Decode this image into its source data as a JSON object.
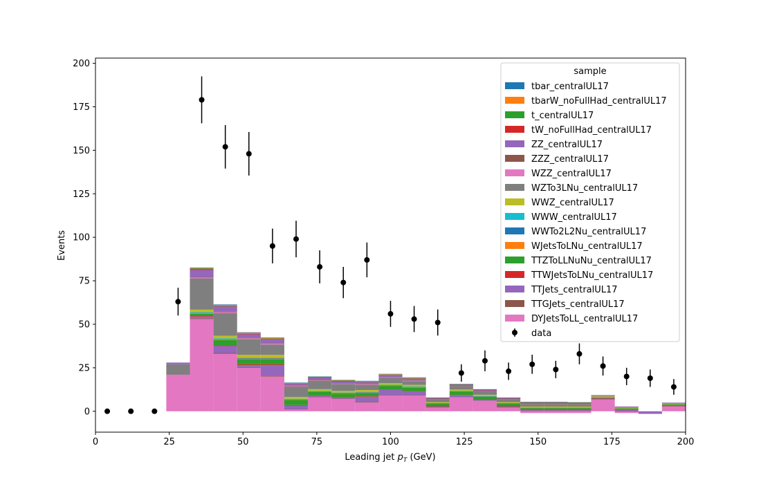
{
  "chart_data": {
    "type": "bar",
    "xlabel": "Leading jet  p_T (GeV)",
    "xlabel_main": "Leading jet  ",
    "xlabel_p": "p",
    "xlabel_sub": "T",
    "xlabel_unit": " (GeV)",
    "ylabel": "Events",
    "xlim": [
      0,
      200
    ],
    "ylim": [
      -12,
      203
    ],
    "xticks": [
      0,
      25,
      50,
      75,
      100,
      125,
      150,
      175,
      200
    ],
    "yticks": [
      0,
      25,
      50,
      75,
      100,
      125,
      150,
      175,
      200
    ],
    "bin_edges": [
      0,
      8,
      16,
      24,
      32,
      40,
      48,
      56,
      64,
      72,
      80,
      88,
      96,
      104,
      112,
      120,
      128,
      136,
      144,
      152,
      160,
      168,
      176,
      184,
      192,
      200
    ],
    "legend": {
      "title": "sample",
      "placement": "upper right"
    },
    "series": [
      {
        "name": "DYJetsToLL_centralUL17",
        "color": "#e377c2",
        "values": [
          0,
          0,
          0,
          21,
          53,
          33,
          25,
          20,
          1,
          8,
          7,
          5,
          9,
          9,
          2,
          8,
          6,
          2,
          -1,
          -1,
          -1,
          7,
          -1,
          0,
          3
        ]
      },
      {
        "name": "TTGJets_centralUL17",
        "color": "#8c564b",
        "values": [
          0,
          0,
          0,
          0,
          0.5,
          0.5,
          0.5,
          0.5,
          0.3,
          0.3,
          0.3,
          0.3,
          0.3,
          0.3,
          0.2,
          0.2,
          0.2,
          0.2,
          0.2,
          0.2,
          0.2,
          0.1,
          0.1,
          0,
          0.1
        ]
      },
      {
        "name": "TTJets_centralUL17",
        "color": "#9467bd",
        "values": [
          0,
          0,
          0,
          0,
          1,
          4,
          1,
          6,
          2,
          0.5,
          0.5,
          3,
          3,
          2,
          0.5,
          1,
          0.5,
          0.5,
          0.5,
          0.5,
          0.5,
          0.3,
          1,
          -1.5,
          0.2
        ]
      },
      {
        "name": "TTWJetsToLNu_centralUL17",
        "color": "#d62728",
        "values": [
          0,
          0,
          0,
          0,
          0.5,
          0.5,
          0.5,
          0.5,
          0.3,
          0.3,
          0.3,
          0.3,
          0.3,
          0.3,
          0.2,
          0.2,
          0.2,
          0.2,
          0.2,
          0.2,
          0.2,
          0.1,
          0.1,
          0,
          0.1
        ]
      },
      {
        "name": "TTZToLLNuNu_centralUL17",
        "color": "#2ca02c",
        "values": [
          0,
          0,
          0,
          0,
          1,
          3,
          3,
          3,
          3,
          2,
          2,
          2,
          2,
          2,
          1.5,
          2,
          1.5,
          1.5,
          1,
          1,
          1,
          0.5,
          0.5,
          0,
          0.5
        ]
      },
      {
        "name": "WJetsToLNu_centralUL17",
        "color": "#ff7f0e",
        "values": [
          0,
          0,
          0,
          0,
          0.3,
          0.3,
          0.3,
          0.3,
          0.2,
          0.2,
          0.2,
          0.2,
          0.2,
          0.2,
          0.1,
          0.1,
          0.1,
          0.1,
          0.1,
          0.1,
          0.1,
          0,
          0,
          0,
          0
        ]
      },
      {
        "name": "WWTo2L2Nu_centralUL17",
        "color": "#1f77b4",
        "values": [
          0,
          0,
          0,
          0,
          0.3,
          0.3,
          0.3,
          0.3,
          0.2,
          0.2,
          0.2,
          0.2,
          0.2,
          0.2,
          0.1,
          0.1,
          0.1,
          0.1,
          0.1,
          0.1,
          0.1,
          0,
          0,
          0,
          0
        ]
      },
      {
        "name": "WWW_centralUL17",
        "color": "#17becf",
        "values": [
          0,
          0,
          0,
          0,
          0.3,
          0.3,
          0.3,
          0.3,
          0.2,
          0.2,
          0.2,
          0.2,
          0.2,
          0.2,
          0.1,
          0.1,
          0.1,
          0.1,
          0.1,
          0.1,
          0.1,
          0,
          0,
          0,
          0
        ]
      },
      {
        "name": "WWZ_centralUL17",
        "color": "#bcbd22",
        "values": [
          0,
          0,
          0,
          0,
          1.5,
          1.5,
          1.5,
          1.5,
          1,
          1,
          1,
          1,
          1,
          1,
          0.5,
          0.8,
          0.8,
          0.5,
          0.5,
          0.5,
          0.5,
          0.5,
          0.3,
          0,
          0.3
        ]
      },
      {
        "name": "WZTo3LNu_centralUL17",
        "color": "#7f7f7f",
        "values": [
          0,
          0,
          0,
          6,
          18,
          13,
          9,
          6,
          6,
          5,
          4,
          3,
          3,
          2,
          1.5,
          2,
          2,
          1.5,
          1.5,
          1.5,
          1.5,
          0.5,
          0.5,
          0,
          0.5
        ]
      },
      {
        "name": "WZZ_centralUL17",
        "color": "#e377c2",
        "values": [
          0,
          0,
          0,
          0,
          0.5,
          0.5,
          0.5,
          0.5,
          0.3,
          0.3,
          0.3,
          0.3,
          0.3,
          0.3,
          0.2,
          0.2,
          0.2,
          0.2,
          0.2,
          0.2,
          0.2,
          0.1,
          0.1,
          0,
          0.1
        ]
      },
      {
        "name": "ZZZ_centralUL17",
        "color": "#8c564b",
        "values": [
          0,
          0,
          0,
          0,
          0.3,
          0.3,
          0.3,
          0.3,
          0.2,
          0.2,
          0.2,
          0.2,
          0.2,
          0.2,
          0.1,
          0.1,
          0.1,
          0.1,
          0.1,
          0.1,
          0.1,
          0,
          0,
          0,
          0
        ]
      },
      {
        "name": "ZZ_centralUL17",
        "color": "#9467bd",
        "values": [
          0,
          0,
          0,
          1,
          4,
          3,
          2,
          2,
          1,
          1,
          1,
          1,
          1,
          1,
          0.5,
          0.5,
          0.5,
          0.5,
          0.5,
          0.5,
          0.3,
          0.2,
          0.2,
          0,
          0.2
        ]
      },
      {
        "name": "tW_noFullHad_centralUL17",
        "color": "#d62728",
        "values": [
          0,
          0,
          0,
          0,
          0.5,
          0.3,
          0.3,
          0.3,
          0.2,
          0.2,
          0.2,
          0.2,
          0.2,
          0.2,
          0.1,
          0.1,
          0.1,
          0.1,
          0.1,
          0.1,
          0.1,
          0,
          0,
          0,
          0
        ]
      },
      {
        "name": "t_centralUL17",
        "color": "#2ca02c",
        "values": [
          0,
          0,
          0,
          0,
          0.3,
          0.3,
          0.3,
          0.3,
          0.2,
          0.2,
          0.2,
          0.2,
          0.2,
          0.2,
          0.1,
          0.1,
          0.1,
          0.1,
          0.1,
          0.1,
          0.1,
          0,
          0,
          0,
          0
        ]
      },
      {
        "name": "tbarW_noFullHad_centralUL17",
        "color": "#ff7f0e",
        "values": [
          0,
          0,
          0,
          0,
          0.3,
          0.3,
          0.3,
          0.3,
          0.2,
          0.2,
          0.2,
          0.2,
          0.2,
          0.2,
          0.1,
          0.1,
          0.1,
          0.1,
          0.1,
          0.1,
          0.1,
          0,
          0,
          0,
          0
        ]
      },
      {
        "name": "tbar_centralUL17",
        "color": "#1f77b4",
        "values": [
          0,
          0,
          0,
          0,
          0.3,
          0.3,
          0.3,
          0.3,
          0.2,
          0.2,
          0.2,
          0.2,
          0.2,
          0.2,
          0.1,
          0.1,
          0.1,
          0.1,
          0.1,
          0.1,
          0.1,
          0,
          0,
          0,
          0
        ]
      }
    ],
    "data": {
      "name": "data",
      "color": "#000000",
      "x": [
        4,
        12,
        20,
        28,
        36,
        44,
        52,
        60,
        68,
        76,
        84,
        92,
        100,
        108,
        116,
        124,
        132,
        140,
        148,
        156,
        164,
        172,
        180,
        188,
        196
      ],
      "y": [
        0,
        0,
        0,
        63,
        179,
        152,
        148,
        95,
        99,
        83,
        74,
        87,
        56,
        53,
        51,
        22,
        29,
        23,
        27,
        24,
        33,
        26,
        20,
        19,
        14
      ],
      "err": [
        0,
        0,
        0,
        8,
        13.5,
        12.5,
        12.5,
        10,
        10.5,
        9.5,
        9,
        10,
        7.5,
        7.5,
        7.5,
        5,
        6,
        5,
        5.5,
        5,
        6,
        5.5,
        5,
        5,
        4.5
      ]
    }
  }
}
